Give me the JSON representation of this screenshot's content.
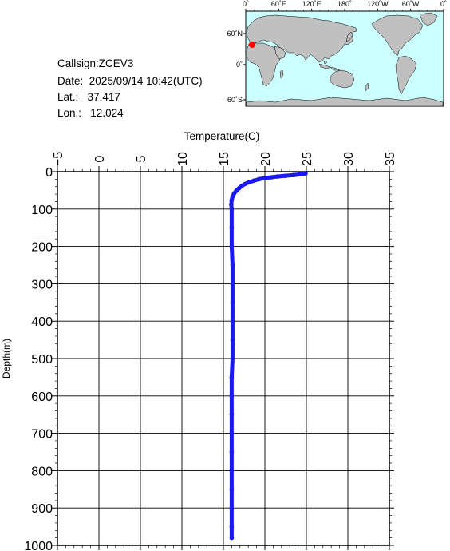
{
  "station": {
    "callsign_label": "Callsign:",
    "callsign": "ZCEV3",
    "date_label": "Date:",
    "date": "2025/09/14 10:42(UTC)",
    "lat_label": "Lat.:",
    "lat": "37.417",
    "lon_label": "Lon.:",
    "lon": "12.024"
  },
  "map": {
    "top_labels": [
      "0˚",
      "60˚E",
      "120˚E",
      "180˚",
      "120˚W",
      "60˚W",
      "0˚"
    ],
    "left_labels": [
      "60˚N",
      "0˚",
      "60˚S"
    ],
    "ocean_color": "#ccffff",
    "land_color": "#c0c0c0",
    "marker_color": "#ff0000"
  },
  "chart_data": {
    "type": "line",
    "xlabel": "Temperature(C)",
    "ylabel": "Depth(m)",
    "xlim": [
      -5,
      35
    ],
    "ylim": [
      1000,
      0
    ],
    "x_ticks": [
      -5,
      0,
      5,
      10,
      15,
      20,
      25,
      30,
      35
    ],
    "y_ticks": [
      0,
      100,
      200,
      300,
      400,
      500,
      600,
      700,
      800,
      900,
      1000
    ],
    "grid": true,
    "line_color": "#1a1aee",
    "series": [
      {
        "points": [
          [
            24.9,
            5
          ],
          [
            24.3,
            7
          ],
          [
            23.5,
            9
          ],
          [
            22.5,
            11
          ],
          [
            21.5,
            13
          ],
          [
            20.8,
            15
          ],
          [
            20.0,
            17
          ],
          [
            19.3,
            20
          ],
          [
            18.7,
            24
          ],
          [
            18.1,
            28
          ],
          [
            17.6,
            33
          ],
          [
            17.2,
            38
          ],
          [
            16.9,
            44
          ],
          [
            16.6,
            50
          ],
          [
            16.3,
            58
          ],
          [
            16.1,
            67
          ],
          [
            16.0,
            76
          ],
          [
            15.95,
            88
          ],
          [
            16.0,
            100
          ],
          [
            16.0,
            150
          ],
          [
            16.0,
            200
          ],
          [
            16.1,
            250
          ],
          [
            16.1,
            300
          ],
          [
            16.1,
            350
          ],
          [
            16.1,
            400
          ],
          [
            16.1,
            450
          ],
          [
            16.1,
            500
          ],
          [
            16.0,
            550
          ],
          [
            16.0,
            600
          ],
          [
            16.0,
            650
          ],
          [
            16.0,
            700
          ],
          [
            16.0,
            750
          ],
          [
            16.0,
            800
          ],
          [
            16.0,
            850
          ],
          [
            16.0,
            900
          ],
          [
            16.0,
            950
          ],
          [
            16.0,
            980
          ]
        ]
      }
    ]
  }
}
